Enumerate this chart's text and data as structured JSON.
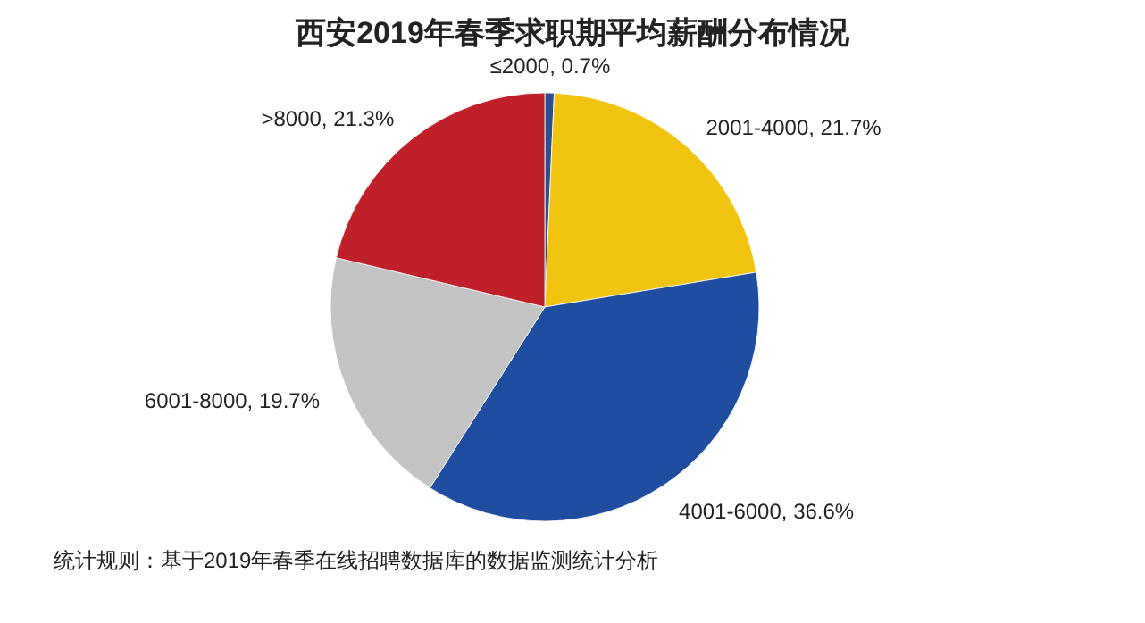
{
  "chart_data": {
    "type": "pie",
    "title": "西安2019年春季求职期平均薪酬分布情况",
    "categories": [
      "≤2000",
      "2001-4000",
      "4001-6000",
      "6001-8000",
      ">8000"
    ],
    "values": [
      0.7,
      21.7,
      36.6,
      19.7,
      21.3
    ],
    "value_labels": [
      "0.7%",
      "21.7%",
      "36.6%",
      "19.7%",
      "21.3%"
    ],
    "colors": [
      "#2b4f91",
      "#f2c412",
      "#1f4ea0",
      "#c4c4c4",
      "#c0202a"
    ],
    "annotations": [
      "统计规则：基于2019年春季在线招聘数据库的数据监测统计分析"
    ]
  }
}
